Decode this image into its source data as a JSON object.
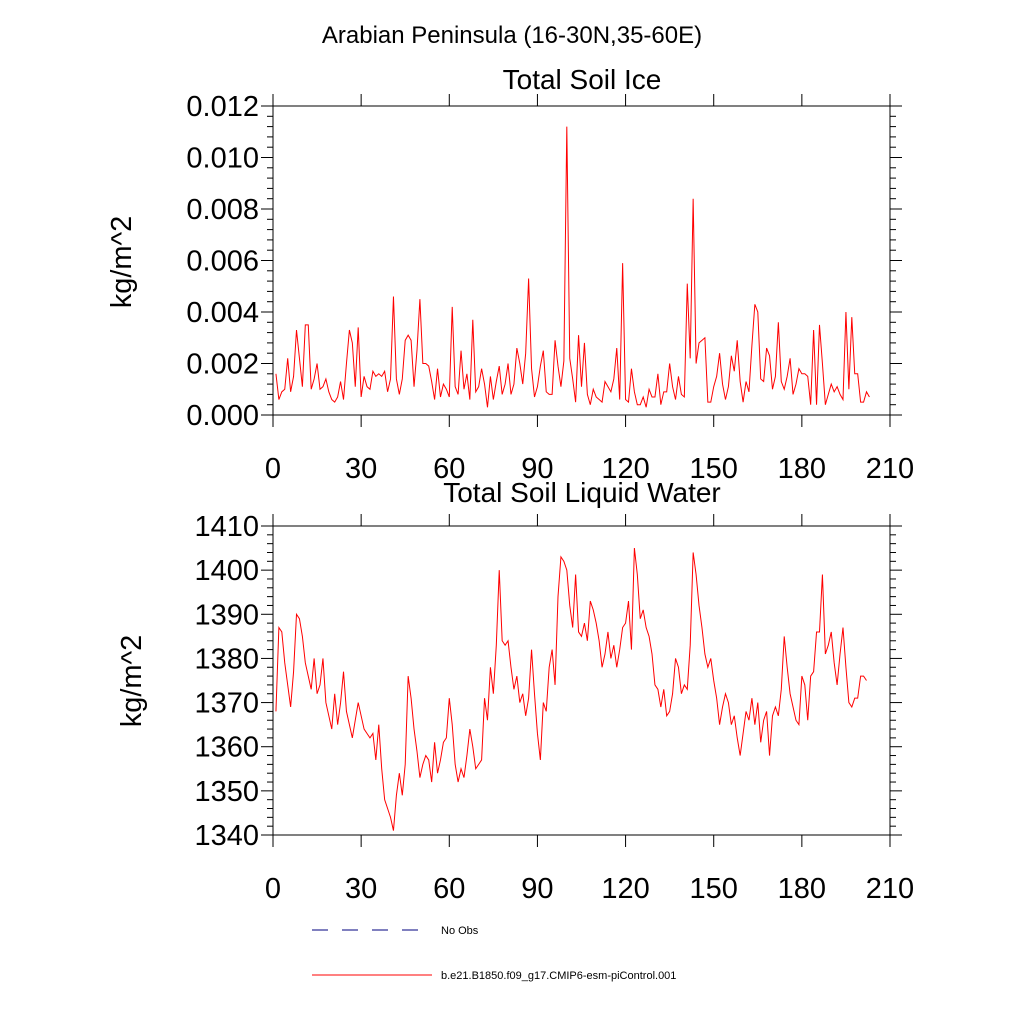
{
  "figure": {
    "suptitle": "Arabian Peninsula (16-30N,35-60E)",
    "series_color": "#ff0000",
    "obs_color": "#00007f"
  },
  "legend": {
    "obs_label": "No Obs",
    "model_label": "b.e21.B1850.f09_g17.CMIP6-esm-piControl.001"
  },
  "chart_data": [
    {
      "type": "line",
      "title": "Total Soil Ice",
      "xlabel": "",
      "ylabel": "kg/m^2",
      "xlim": [
        0,
        210
      ],
      "ylim": [
        0,
        0.012
      ],
      "xticks": [
        "0",
        "30",
        "60",
        "90",
        "120",
        "150",
        "180",
        "210"
      ],
      "yticks": [
        "0.000",
        "0.002",
        "0.004",
        "0.006",
        "0.008",
        "0.010",
        "0.012"
      ],
      "grid": false,
      "series": [
        {
          "x_start": 1,
          "values": [
            0.0016,
            0.0006,
            0.0009,
            0.001,
            0.0022,
            0.0009,
            0.0015,
            0.0033,
            0.0022,
            0.0011,
            0.0035,
            0.0035,
            0.001,
            0.0014,
            0.002,
            0.001,
            0.0011,
            0.0014,
            0.0009,
            0.0006,
            0.0005,
            0.0007,
            0.0013,
            0.0006,
            0.002,
            0.0033,
            0.0028,
            0.0011,
            0.0034,
            0.0007,
            0.0015,
            0.0011,
            0.001,
            0.0017,
            0.0015,
            0.0016,
            0.0015,
            0.0017,
            0.0009,
            0.0014,
            0.0046,
            0.0014,
            0.0008,
            0.0014,
            0.0029,
            0.0031,
            0.0029,
            0.0011,
            0.0025,
            0.0045,
            0.002,
            0.002,
            0.0019,
            0.0013,
            0.0006,
            0.0018,
            0.0007,
            0.0012,
            0.001,
            0.0007,
            0.0042,
            0.0011,
            0.0008,
            0.0025,
            0.001,
            0.0016,
            0.0006,
            0.0037,
            0.0009,
            0.0011,
            0.0018,
            0.0012,
            0.0003,
            0.0015,
            0.0006,
            0.0013,
            0.0019,
            0.0008,
            0.0012,
            0.002,
            0.0008,
            0.0012,
            0.0026,
            0.002,
            0.0012,
            0.0024,
            0.0053,
            0.0018,
            0.0007,
            0.0011,
            0.0019,
            0.0025,
            0.0009,
            0.0008,
            0.0008,
            0.0029,
            0.0019,
            0.0011,
            0.0021,
            0.0112,
            0.0022,
            0.0014,
            0.0005,
            0.0031,
            0.0011,
            0.0028,
            0.0008,
            0.0004,
            0.001,
            0.0007,
            0.0006,
            0.0005,
            0.0013,
            0.0011,
            0.0009,
            0.0014,
            0.0026,
            0.0006,
            0.0059,
            0.0006,
            0.0005,
            0.0018,
            0.0009,
            0.0004,
            0.0004,
            0.0007,
            0.0003,
            0.001,
            0.0007,
            0.0007,
            0.0016,
            0.0004,
            0.0009,
            0.0009,
            0.002,
            0.0011,
            0.0006,
            0.0015,
            0.0008,
            0.0007,
            0.0051,
            0.0022,
            0.0084,
            0.002,
            0.0028,
            0.0029,
            0.003,
            0.0005,
            0.0005,
            0.0011,
            0.0015,
            0.0024,
            0.0012,
            0.0006,
            0.0011,
            0.0023,
            0.0017,
            0.0029,
            0.0013,
            0.0005,
            0.0013,
            0.0009,
            0.0027,
            0.0043,
            0.004,
            0.0014,
            0.0013,
            0.0026,
            0.0023,
            0.001,
            0.0015,
            0.0036,
            0.0013,
            0.001,
            0.0015,
            0.0022,
            0.0008,
            0.0012,
            0.0018,
            0.0016,
            0.0016,
            0.0015,
            0.0004,
            0.0033,
            0.0004,
            0.0035,
            0.002,
            0.0004,
            0.0008,
            0.0012,
            0.0009,
            0.0011,
            0.0008,
            0.0006,
            0.004,
            0.001,
            0.0038,
            0.0016,
            0.0016,
            0.0005,
            0.0005,
            0.0009,
            0.0007
          ]
        }
      ]
    },
    {
      "type": "line",
      "title": "Total Soil Liquid Water",
      "xlabel": "",
      "ylabel": "kg/m^2",
      "xlim": [
        0,
        210
      ],
      "ylim": [
        1340,
        1410
      ],
      "xticks": [
        "0",
        "30",
        "60",
        "90",
        "120",
        "150",
        "180",
        "210"
      ],
      "yticks": [
        "1340",
        "1350",
        "1360",
        "1370",
        "1380",
        "1390",
        "1400",
        "1410"
      ],
      "grid": false,
      "series": [
        {
          "x_start": 1,
          "values": [
            1368,
            1387,
            1386,
            1379,
            1374,
            1369,
            1377,
            1390,
            1389,
            1385,
            1379,
            1376,
            1373,
            1380,
            1372,
            1374,
            1380,
            1370,
            1367,
            1364,
            1372,
            1365,
            1370,
            1377,
            1368,
            1365,
            1362,
            1366,
            1370,
            1367,
            1364,
            1363,
            1362,
            1363,
            1357,
            1365,
            1355,
            1348,
            1346,
            1344,
            1341,
            1349,
            1354,
            1349,
            1356,
            1376,
            1371,
            1364,
            1359,
            1353,
            1356,
            1358,
            1357,
            1352,
            1361,
            1354,
            1357,
            1361,
            1362,
            1371,
            1365,
            1356,
            1352,
            1355,
            1353,
            1358,
            1364,
            1360,
            1355,
            1356,
            1357,
            1371,
            1366,
            1378,
            1372,
            1383,
            1400,
            1384,
            1383,
            1384,
            1378,
            1373,
            1376,
            1370,
            1372,
            1367,
            1371,
            1382,
            1372,
            1363,
            1357,
            1370,
            1368,
            1378,
            1382,
            1374,
            1394,
            1403,
            1402,
            1400,
            1392,
            1387,
            1399,
            1386,
            1385,
            1388,
            1384,
            1393,
            1391,
            1388,
            1384,
            1378,
            1381,
            1386,
            1380,
            1383,
            1378,
            1382,
            1387,
            1388,
            1393,
            1382,
            1405,
            1399,
            1389,
            1391,
            1387,
            1385,
            1381,
            1374,
            1373,
            1369,
            1373,
            1367,
            1368,
            1372,
            1380,
            1378,
            1372,
            1374,
            1373,
            1383,
            1404,
            1399,
            1392,
            1387,
            1381,
            1378,
            1380,
            1375,
            1371,
            1365,
            1369,
            1372,
            1370,
            1365,
            1367,
            1362,
            1358,
            1363,
            1368,
            1366,
            1371,
            1365,
            1370,
            1361,
            1366,
            1368,
            1358,
            1367,
            1369,
            1367,
            1373,
            1385,
            1378,
            1372,
            1369,
            1366,
            1365,
            1376,
            1374,
            1366,
            1376,
            1377,
            1386,
            1386,
            1399,
            1381,
            1383,
            1386,
            1379,
            1374,
            1381,
            1387,
            1378,
            1370,
            1369,
            1371,
            1371,
            1376,
            1376,
            1375
          ]
        }
      ]
    }
  ]
}
